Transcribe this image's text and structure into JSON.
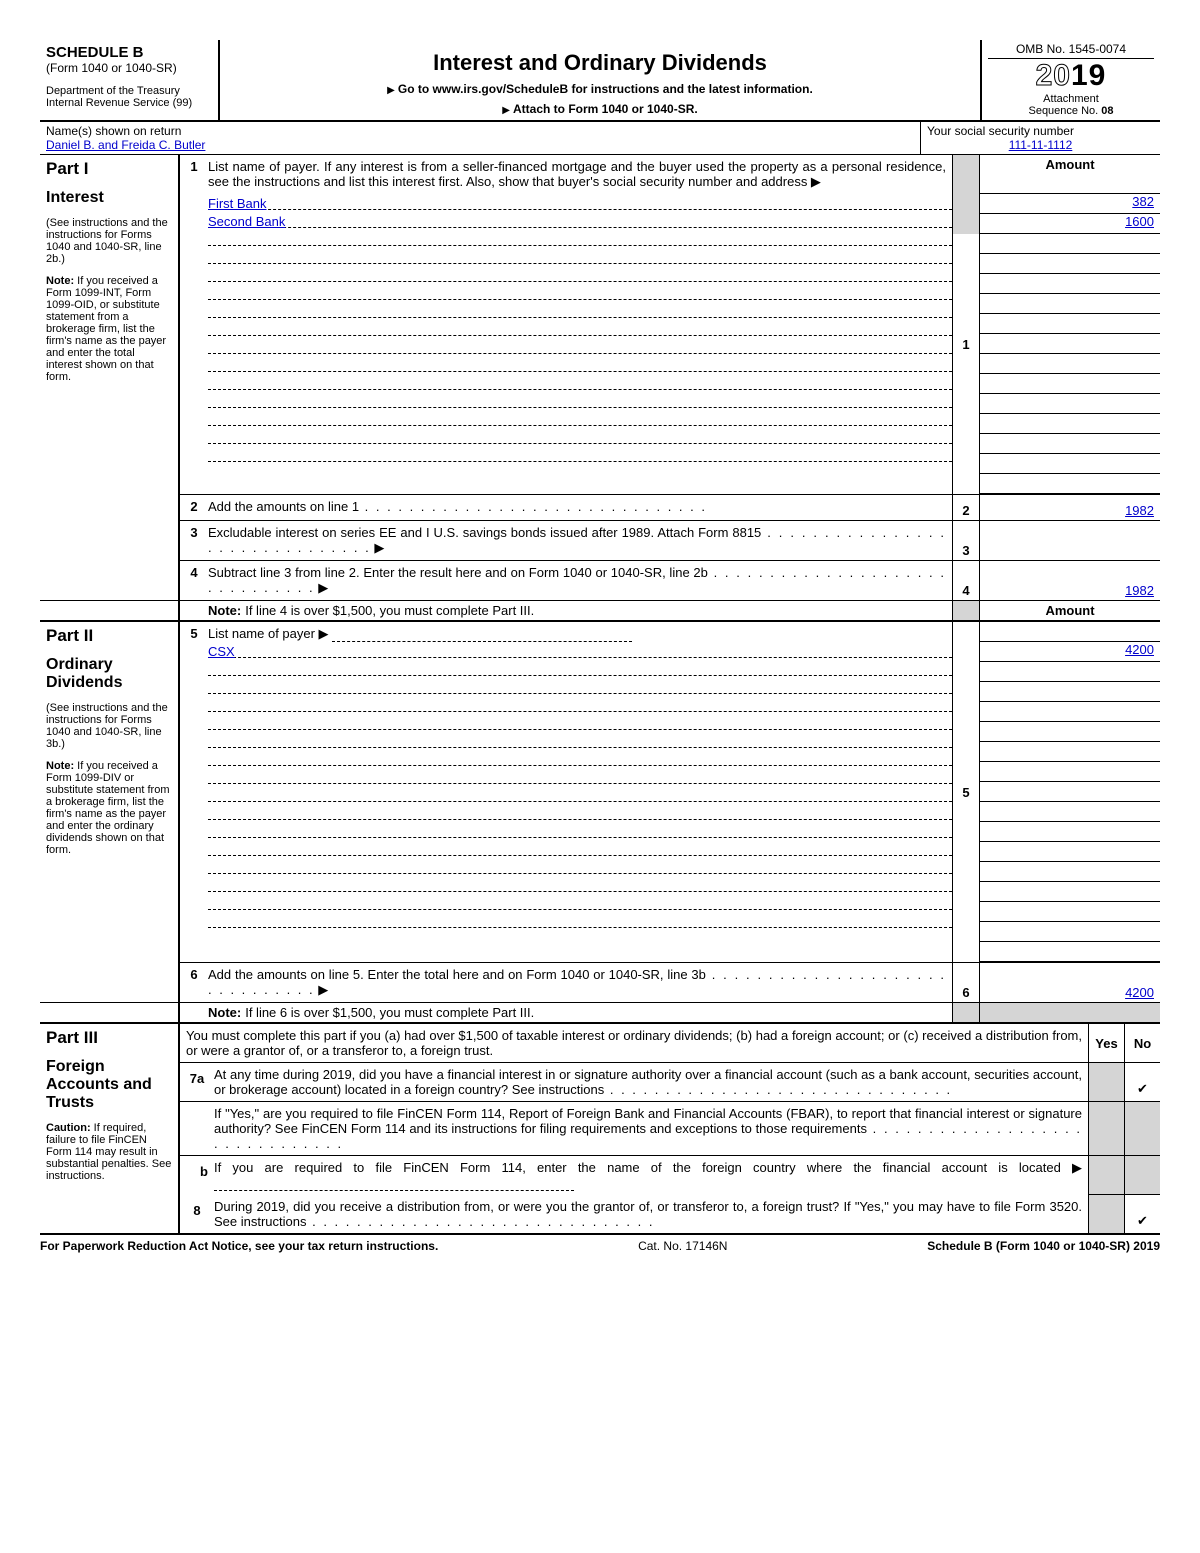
{
  "header": {
    "schedule": "SCHEDULE B",
    "form_ref": "(Form 1040 or 1040-SR)",
    "dept": "Department of the Treasury",
    "irs": "Internal Revenue Service (99)",
    "title": "Interest and Ordinary Dividends",
    "goto": "Go to www.irs.gov/ScheduleB for instructions and the latest information.",
    "attach_instr": "Attach to Form 1040 or 1040-SR.",
    "omb": "OMB No. 1545-0074",
    "year_prefix": "20",
    "year_suffix": "19",
    "attach_label": "Attachment",
    "seq_label": "Sequence No.",
    "seq_no": "08"
  },
  "name_row": {
    "label": "Name(s) shown on return",
    "name": "Daniel B. and Freida C. Butler",
    "ssn_label": "Your social security number",
    "ssn": "111-11-1112"
  },
  "part1": {
    "title": "Part I",
    "subtitle": "Interest",
    "side_text1": "(See instructions and the instructions for Forms 1040 and 1040-SR, line 2b.)",
    "side_note": "Note: If you received a Form 1099-INT, Form 1099-OID, or substitute statement from a brokerage firm, list the firm's name as the payer and enter the total interest shown on that form.",
    "line1_instr": "List name of payer. If any interest is from a seller-financed mortgage and the buyer used the property as a personal residence, see the instructions and list this interest first. Also, show that buyer's social security number and address ▶",
    "amount_header": "Amount",
    "payers": [
      {
        "name": "First Bank",
        "amount": "382"
      },
      {
        "name": "Second Bank",
        "amount": "1600"
      }
    ],
    "blank_rows": 13,
    "box1_num": "1",
    "line2_num": "2",
    "line2_text": "Add the amounts on line 1",
    "line2_amt": "1982",
    "line3_num": "3",
    "line3_text": "Excludable interest on series EE and I U.S. savings bonds issued after 1989. Attach Form 8815",
    "line3_amt": "",
    "line4_num": "4",
    "line4_text": "Subtract line 3 from line 2. Enter the result here and on Form 1040 or 1040-SR, line 2b",
    "line4_amt": "1982",
    "note": "If line 4 is over $1,500, you must complete Part III."
  },
  "part2": {
    "title": "Part II",
    "subtitle": "Ordinary Dividends",
    "side_text1": "(See instructions and the instructions for Forms 1040 and 1040-SR, line 3b.)",
    "side_note": "Note: If you received a Form 1099-DIV or substitute statement from a brokerage firm, list the firm's name as the payer and enter the ordinary dividends shown on that form.",
    "line5_num": "5",
    "line5_instr": "List name of payer ▶",
    "amount_header": "Amount",
    "payers": [
      {
        "name": "CSX",
        "amount": "4200"
      }
    ],
    "blank_rows": 15,
    "box5_num": "5",
    "line6_num": "6",
    "line6_text": "Add the amounts on line 5. Enter the total here and on Form 1040 or 1040-SR, line 3b",
    "line6_amt": "4200",
    "note": "If line 6 is over $1,500, you must complete Part III."
  },
  "part3": {
    "title": "Part III",
    "subtitle": "Foreign Accounts and Trusts",
    "caution": "Caution: If required, failure to file FinCEN Form 114 may result in substantial penalties. See instructions.",
    "intro": "You must complete this part if you (a) had over $1,500 of taxable interest or ordinary dividends; (b) had a foreign account; or (c) received a distribution from, or were a grantor of, or a transferor to, a foreign trust.",
    "yes": "Yes",
    "no": "No",
    "q7a_num": "7a",
    "q7a": "At any time during 2019, did you have a financial interest in or signature authority over a financial account (such as a bank account, securities account, or brokerage account) located in a foreign country? See instructions",
    "q7a_no": "✔",
    "q7a2": "If \"Yes,\" are you required to file FinCEN Form 114, Report of Foreign Bank and Financial Accounts (FBAR), to report that financial interest or signature authority? See FinCEN Form 114 and its instructions for filing requirements and exceptions to those requirements",
    "q7b_num": "b",
    "q7b": "If you are required to file FinCEN Form 114, enter the name of the foreign country where the financial account is located ▶",
    "q8_num": "8",
    "q8": "During 2019, did you receive a distribution from, or were you the grantor of, or transferor to, a foreign trust? If \"Yes,\" you may have to file Form 3520. See instructions",
    "q8_no": "✔"
  },
  "footer": {
    "left": "For Paperwork Reduction Act Notice, see your tax return instructions.",
    "center": "Cat. No. 17146N",
    "right": "Schedule B (Form 1040 or 1040-SR) 2019"
  }
}
